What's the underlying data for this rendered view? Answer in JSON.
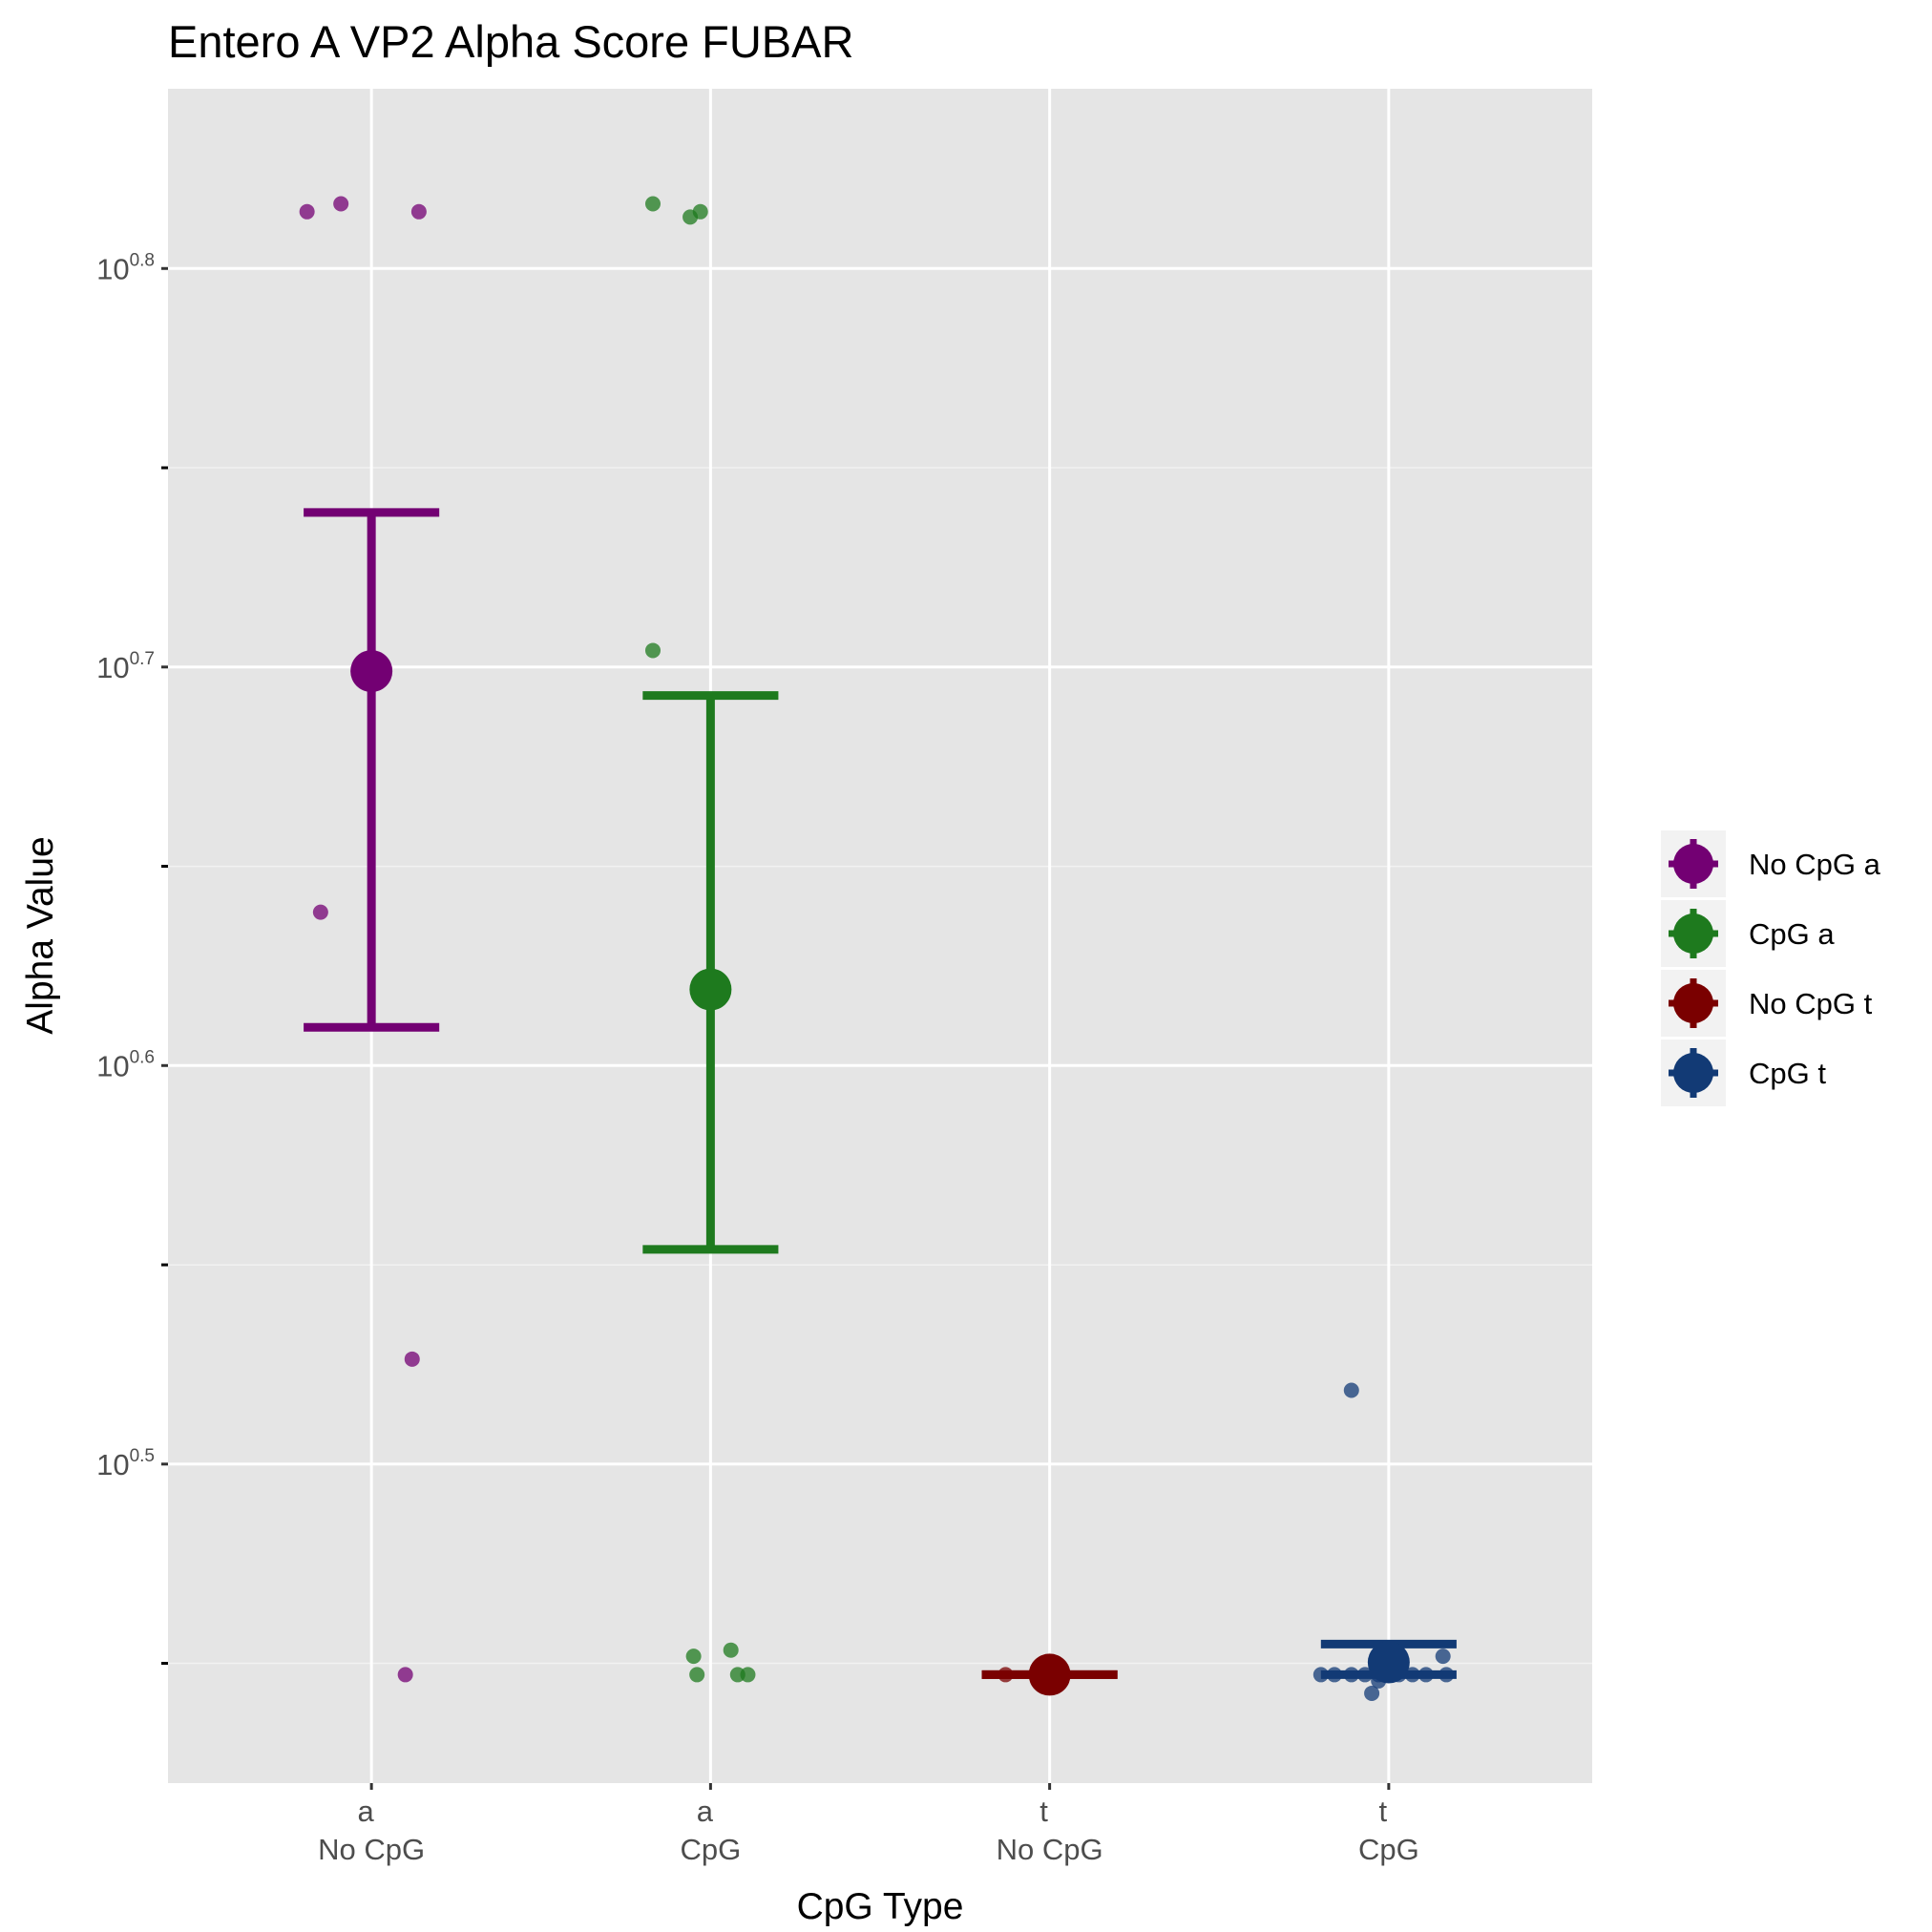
{
  "chart_data": {
    "type": "scatter",
    "title": "Entero A VP2 Alpha Score FUBAR",
    "xlabel": "CpG Type",
    "ylabel": "Alpha Value",
    "y_scale": "log10",
    "ylim": [
      2.63,
      7.0
    ],
    "y_ticks": [
      {
        "value": 3.1623,
        "base": "10",
        "exp": "0.5"
      },
      {
        "value": 3.9811,
        "base": "10",
        "exp": "0.6"
      },
      {
        "value": 5.0119,
        "base": "10",
        "exp": "0.7"
      },
      {
        "value": 6.3096,
        "base": "10",
        "exp": "0.8"
      }
    ],
    "y_minor_ticks": [
      2.8184,
      3.5481,
      4.4668,
      5.6234
    ],
    "categories": [
      {
        "top": "a",
        "bottom": "No CpG"
      },
      {
        "top": "a",
        "bottom": "CpG"
      },
      {
        "top": "t",
        "bottom": "No CpG"
      },
      {
        "top": "t",
        "bottom": "CpG"
      }
    ],
    "grid": true,
    "legend_position": "right",
    "series": [
      {
        "name": "No CpG a",
        "color": "#730073",
        "category_index": 0,
        "mean": 5.0,
        "error_low": 4.07,
        "error_high": 5.48,
        "points": [
          {
            "jitter": -0.19,
            "y": 6.52
          },
          {
            "jitter": -0.09,
            "y": 6.55
          },
          {
            "jitter": 0.14,
            "y": 6.52
          },
          {
            "jitter": -0.15,
            "y": 4.35
          },
          {
            "jitter": 0.12,
            "y": 3.36
          },
          {
            "jitter": 0.1,
            "y": 2.8
          }
        ]
      },
      {
        "name": "CpG a",
        "color": "#1e7a1e",
        "category_index": 1,
        "mean": 4.16,
        "error_low": 3.58,
        "error_high": 4.93,
        "points": [
          {
            "jitter": -0.17,
            "y": 6.55
          },
          {
            "jitter": -0.06,
            "y": 6.5
          },
          {
            "jitter": -0.03,
            "y": 6.52
          },
          {
            "jitter": -0.17,
            "y": 5.06
          },
          {
            "jitter": -0.05,
            "y": 2.83
          },
          {
            "jitter": 0.06,
            "y": 2.84
          },
          {
            "jitter": -0.04,
            "y": 2.8
          },
          {
            "jitter": 0.08,
            "y": 2.8
          },
          {
            "jitter": 0.11,
            "y": 2.8
          }
        ]
      },
      {
        "name": "No CpG t",
        "color": "#7a0000",
        "category_index": 2,
        "mean": 2.8,
        "error_low": 2.8,
        "error_high": 2.8,
        "points": [
          {
            "jitter": -0.13,
            "y": 2.8
          },
          {
            "jitter": 0.0,
            "y": 2.8
          }
        ]
      },
      {
        "name": "CpG t",
        "color": "#123a75",
        "category_index": 3,
        "mean": 2.82,
        "error_low": 2.8,
        "error_high": 2.85,
        "points": [
          {
            "jitter": -0.11,
            "y": 3.3
          },
          {
            "jitter": -0.2,
            "y": 2.8
          },
          {
            "jitter": -0.16,
            "y": 2.8
          },
          {
            "jitter": -0.11,
            "y": 2.8
          },
          {
            "jitter": -0.07,
            "y": 2.8
          },
          {
            "jitter": -0.03,
            "y": 2.8
          },
          {
            "jitter": 0.0,
            "y": 2.8
          },
          {
            "jitter": 0.03,
            "y": 2.8
          },
          {
            "jitter": 0.07,
            "y": 2.8
          },
          {
            "jitter": 0.11,
            "y": 2.8
          },
          {
            "jitter": 0.17,
            "y": 2.8
          },
          {
            "jitter": 0.16,
            "y": 2.83
          },
          {
            "jitter": -0.05,
            "y": 2.77
          },
          {
            "jitter": -0.03,
            "y": 2.79
          }
        ]
      }
    ]
  }
}
